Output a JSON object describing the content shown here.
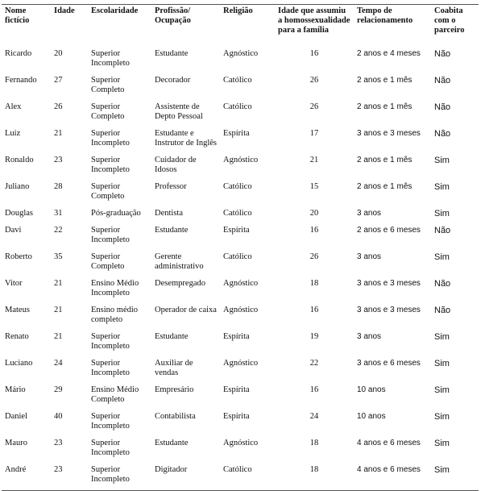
{
  "table": {
    "header": [
      "Nome fictício",
      "Idade",
      "Escolaridade",
      "Profissão/ Ocupação",
      "Religião",
      "Idade que assumiu a homossexualidade para a família",
      "Tempo de relacionamento",
      "Coabita com o parceiro"
    ],
    "rows": [
      [
        "Ricardo",
        20,
        "Superior Incompleto",
        "Estudante",
        "Agnóstico",
        16,
        "2 anos e 4 meses",
        "Não"
      ],
      [
        "Fernando",
        27,
        "Superior Completo",
        "Decorador",
        "Católico",
        26,
        "2 anos e 1 mês",
        "Não"
      ],
      [
        "Alex",
        26,
        "Superior Completo",
        "Assistente de Depto Pessoal",
        "Católico",
        26,
        "2 anos e 1 mês",
        "Não"
      ],
      [
        "Luiz",
        21,
        "Superior Incompleto",
        "Estudante e Instrutor de Inglês",
        "Espírita",
        17,
        "3 anos e 3 meses",
        "Não"
      ],
      [
        "Ronaldo",
        23,
        "Superior Incompleto",
        "Cuidador de Idosos",
        "Agnóstico",
        21,
        "2 anos e 1 mês",
        "Sim"
      ],
      [
        "Juliano",
        28,
        "Superior Completo",
        "Professor",
        "Católico",
        15,
        "2 anos e 1 mês",
        "Sim"
      ],
      [
        "Douglas",
        31,
        "Pós-graduação",
        "Dentista",
        "Católico",
        20,
        "3 anos",
        "Sim"
      ],
      [
        "Davi",
        22,
        "Superior Incompleto",
        "Estudante",
        "Espírita",
        16,
        "2 anos e 6 meses",
        "Não"
      ],
      [
        "Roberto",
        35,
        "Superior Completo",
        "Gerente administrativo",
        "Católico",
        26,
        "3 anos",
        "Sim"
      ],
      [
        "Vitor",
        21,
        "Ensino Médio Incompleto",
        "Desempregado",
        "Agnóstico",
        18,
        "3 anos e 3 meses",
        "Não"
      ],
      [
        "Mateus",
        21,
        "Ensino médio completo",
        "Operador de caixa",
        "Agnóstico",
        16,
        "3 anos e 3 meses",
        "Não"
      ],
      [
        "Renato",
        21,
        "Superior Incompleto",
        "Estudante",
        "Espírita",
        19,
        "3 anos",
        "Sim"
      ],
      [
        "Luciano",
        24,
        "Superior Incompleto",
        "Auxiliar de vendas",
        "Agnóstico",
        22,
        "3 anos e 6 meses",
        "Sim"
      ],
      [
        "Mário",
        29,
        "Ensino Médio Completo",
        "Empresário",
        "Espírita",
        16,
        "10 anos",
        "Sim"
      ],
      [
        "Daniel",
        40,
        "Superior Incompleto",
        "Contabilista",
        "Espírita",
        24,
        "10 anos",
        "Sim"
      ],
      [
        "Mauro",
        23,
        "Superior Incompleto",
        "Estudante",
        "Agnóstico",
        18,
        "4 anos e 6 meses",
        "Sim"
      ],
      [
        "André",
        23,
        "Superior Incompleto",
        "Digitador",
        "Católico",
        18,
        "4 anos e 6 meses",
        "Sim"
      ]
    ]
  }
}
